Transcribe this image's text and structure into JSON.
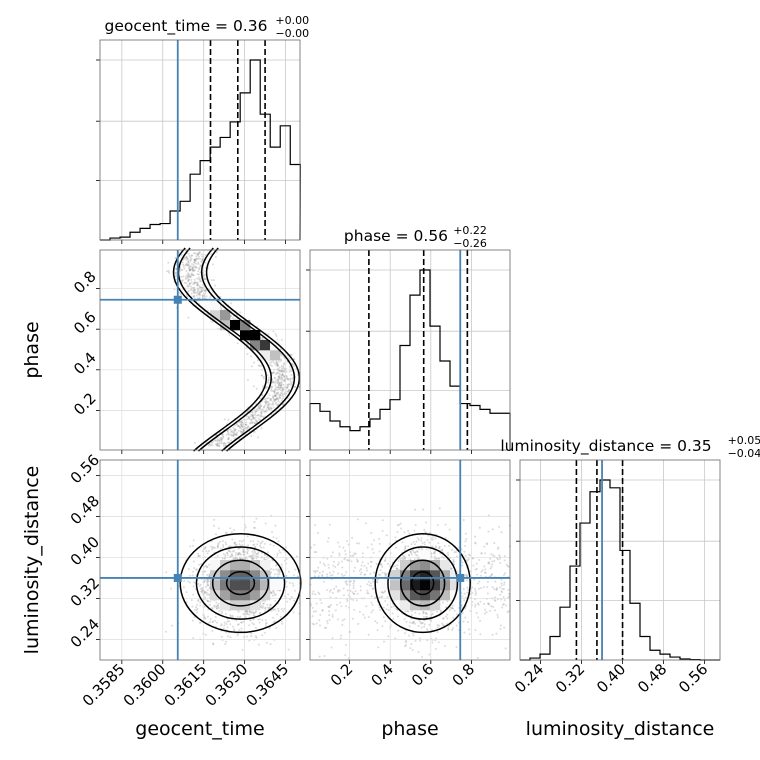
{
  "chart_data": {
    "type": "corner",
    "parameters": [
      "geocent_time",
      "phase",
      "luminosity_distance"
    ],
    "truths": {
      "geocent_time": 0.36055,
      "phase": 0.745,
      "luminosity_distance": 0.36
    },
    "truth_color": "#4682b4",
    "titles": [
      {
        "param": "geocent_time",
        "text": "geocent_time = 0.36",
        "sup": "+0.00",
        "sub": "−0.00"
      },
      {
        "param": "phase",
        "text": "phase = 0.56",
        "sup": "+0.22",
        "sub": "−0.26"
      },
      {
        "param": "luminosity_distance",
        "text": "luminosity_distance = 0.35",
        "sup": "+0.05",
        "sub": "−0.04"
      }
    ],
    "ranges": {
      "geocent_time": [
        0.3577,
        0.36503
      ],
      "phase": [
        0.005,
        0.99
      ],
      "luminosity_distance": [
        0.2,
        0.59
      ]
    },
    "ticks": {
      "geocent_time": {
        "values": [
          0.3585,
          0.36,
          0.3615,
          0.363,
          0.3645
        ],
        "labels": [
          "0.3585",
          "0.3600",
          "0.3615",
          "0.3630",
          "0.3645"
        ]
      },
      "phase": {
        "values": [
          0.2,
          0.4,
          0.6,
          0.8
        ],
        "labels": [
          "0.2",
          "0.4",
          "0.6",
          "0.8"
        ]
      },
      "luminosity_distance": {
        "values": [
          0.24,
          0.32,
          0.4,
          0.48,
          0.56
        ],
        "labels": [
          "0.24",
          "0.32",
          "0.40",
          "0.48",
          "0.56"
        ]
      }
    },
    "quantiles": {
      "geocent_time": [
        0.36175,
        0.36275,
        0.36375
      ],
      "phase": [
        0.295,
        0.565,
        0.78
      ],
      "luminosity_distance": [
        0.31,
        0.35,
        0.4
      ]
    },
    "histograms": {
      "geocent_time": {
        "edges_start": 0.3577,
        "bin_width": 0.000367,
        "counts": [
          0,
          0.1,
          0.15,
          0.4,
          0.6,
          0.8,
          0.85,
          1.5,
          2.0,
          3.4,
          4.1,
          4.8,
          5.3,
          6.1,
          7.6,
          9.3,
          6.5,
          4.8,
          5.9,
          3.9
        ]
      },
      "phase": {
        "edges_start": 0.005,
        "bin_width": 0.04925,
        "counts": [
          2.4,
          2.0,
          1.5,
          1.2,
          1.0,
          1.2,
          1.6,
          2.1,
          2.6,
          5.4,
          8.0,
          9.3,
          6.4,
          4.6,
          3.3,
          2.4,
          2.3,
          2.1,
          1.9,
          1.9
        ]
      },
      "luminosity_distance": {
        "edges_start": 0.2,
        "bin_width": 0.0195,
        "counts": [
          0,
          0.1,
          0.3,
          1.2,
          2.7,
          4.8,
          7.0,
          8.6,
          9.2,
          8.8,
          5.6,
          2.9,
          1.2,
          0.5,
          0.3,
          0.15,
          0.05,
          0.02,
          0,
          0
        ]
      }
    },
    "grid": true
  }
}
